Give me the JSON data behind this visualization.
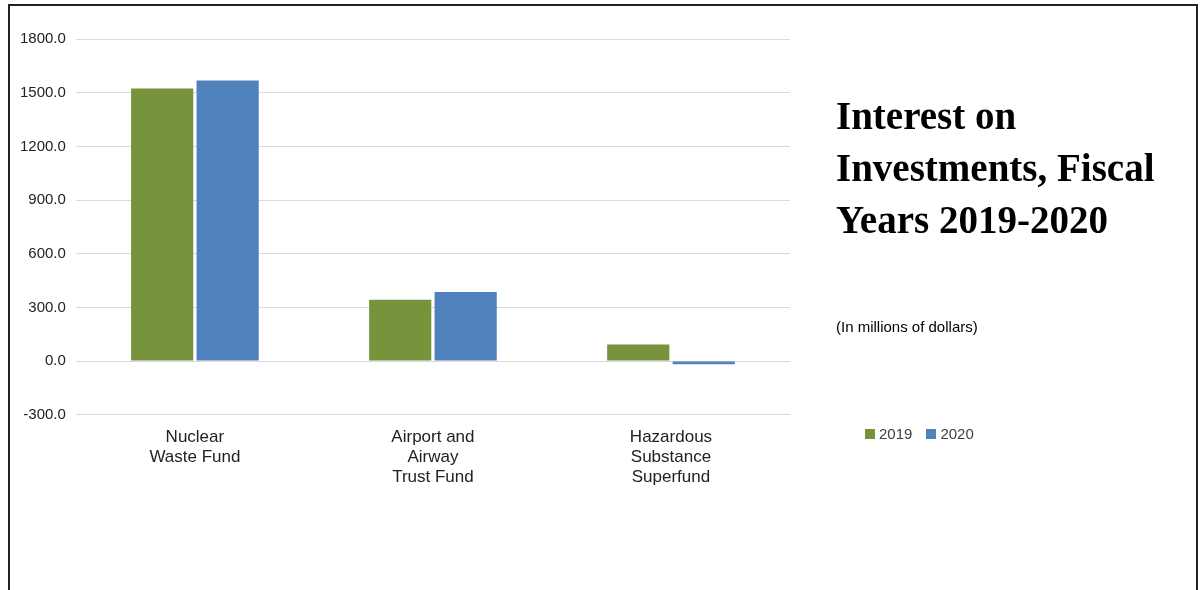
{
  "chart_data": {
    "type": "bar",
    "title": "Interest on Investments, Fiscal Years 2019-2020",
    "subtitle": "(In millions of dollars)",
    "categories": [
      "Nuclear Waste Fund",
      "Airport and Airway Trust Fund",
      "Hazardous Substance Superfund"
    ],
    "series": [
      {
        "name": "2019",
        "color": "#77933c",
        "values": [
          1524,
          343,
          93
        ]
      },
      {
        "name": "2020",
        "color": "#4f81bd",
        "values": [
          1568,
          386,
          -17
        ]
      }
    ],
    "ylim": [
      -300,
      1800
    ],
    "yticks": [
      {
        "value": -300,
        "label": "-300.0"
      },
      {
        "value": 0,
        "label": "0.0"
      },
      {
        "value": 300,
        "label": "300.0"
      },
      {
        "value": 600,
        "label": "600.0"
      },
      {
        "value": 900,
        "label": "900.0"
      },
      {
        "value": 1200,
        "label": "1200.0"
      },
      {
        "value": 1500,
        "label": "1500.0"
      },
      {
        "value": 1800,
        "label": "1800.0"
      }
    ],
    "grid": "y",
    "legend": "right"
  }
}
